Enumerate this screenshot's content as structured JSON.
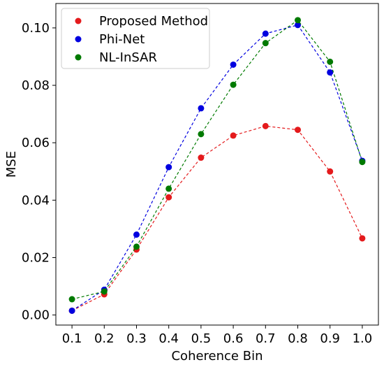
{
  "chart_data": {
    "type": "line",
    "xlabel": "Coherence Bin",
    "ylabel": "MSE",
    "x": [
      0.1,
      0.2,
      0.3,
      0.4,
      0.5,
      0.6,
      0.7,
      0.8,
      0.9,
      1.0
    ],
    "x_tick_labels": [
      "0.1",
      "0.2",
      "0.3",
      "0.4",
      "0.5",
      "0.6",
      "0.7",
      "0.8",
      "0.9",
      "1.0"
    ],
    "y_ticks": [
      0.0,
      0.02,
      0.04,
      0.06,
      0.08,
      0.1
    ],
    "y_tick_labels": [
      "0.00",
      "0.02",
      "0.04",
      "0.06",
      "0.08",
      "0.10"
    ],
    "xlim": [
      0.05,
      1.05
    ],
    "ylim": [
      -0.0035,
      0.1085
    ],
    "grid": false,
    "legend_position": "top-left",
    "line_style": "dashed",
    "series": [
      {
        "name": "Proposed Method",
        "color": "#e41a1c",
        "values": [
          0.0015,
          0.0072,
          0.0228,
          0.041,
          0.0548,
          0.0625,
          0.0658,
          0.0645,
          0.05,
          0.0267
        ]
      },
      {
        "name": "Phi-Net",
        "color": "#0000e0",
        "values": [
          0.0015,
          0.0088,
          0.028,
          0.0515,
          0.072,
          0.0872,
          0.098,
          0.101,
          0.0845,
          0.0537
        ]
      },
      {
        "name": "NL-InSAR",
        "color": "#007a00",
        "values": [
          0.0055,
          0.0082,
          0.0238,
          0.044,
          0.063,
          0.0802,
          0.0947,
          0.1027,
          0.0882,
          0.0533
        ]
      }
    ]
  }
}
